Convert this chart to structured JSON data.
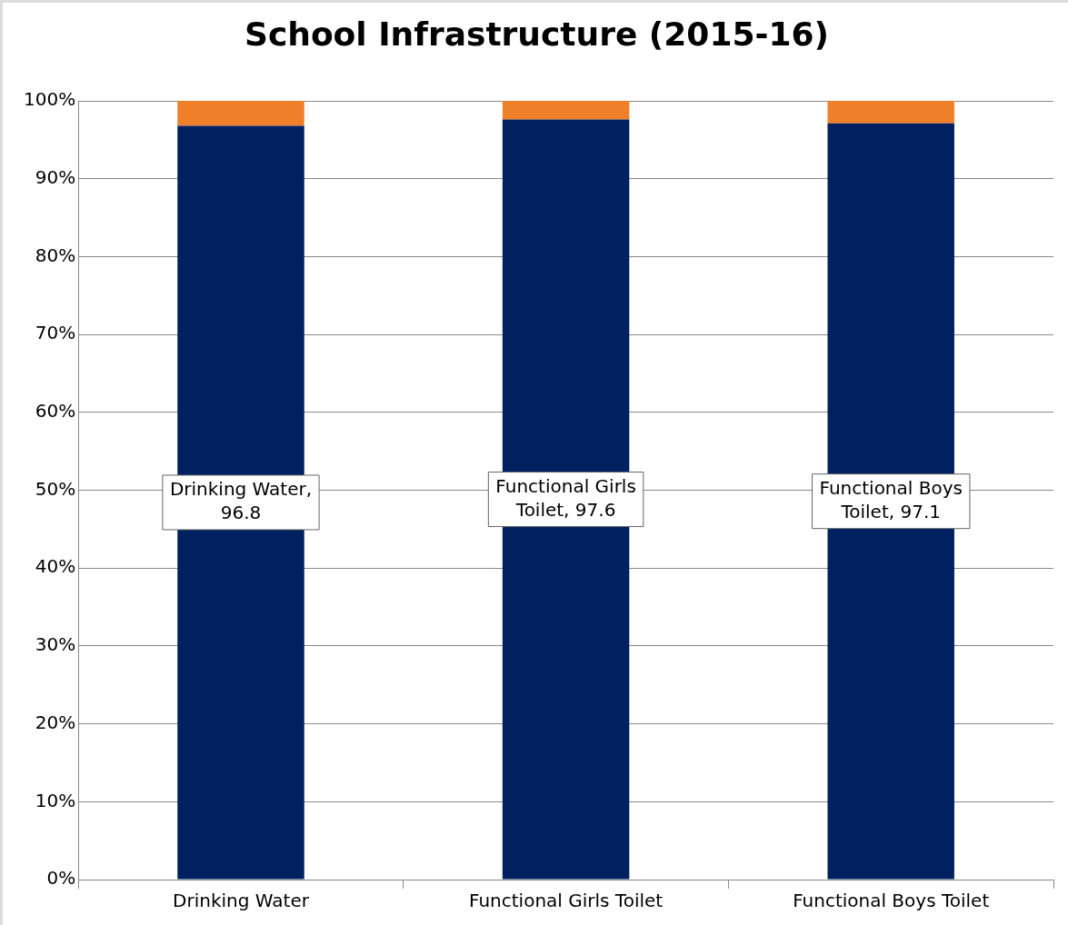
{
  "chart_data": {
    "type": "bar",
    "title": "School Infrastructure (2015-16)",
    "categories": [
      "Drinking Water",
      "Functional Girls Toilet",
      "Functional Boys Toilet"
    ],
    "stacked": true,
    "series": [
      {
        "color": "#002060",
        "values": [
          96.8,
          97.6,
          97.1
        ],
        "value_labels": [
          "Drinking Water, 96.8",
          "Functional Girls Toilet, 97.6",
          "Functional Boys Toilet, 97.1"
        ]
      },
      {
        "color": "#f07f2a",
        "values": [
          3.2,
          2.4,
          2.9
        ]
      }
    ],
    "ylim": [
      0,
      100
    ],
    "yticks": [
      {
        "value": 0,
        "label": "0%"
      },
      {
        "value": 10,
        "label": "10%"
      },
      {
        "value": 20,
        "label": "20%"
      },
      {
        "value": 30,
        "label": "30%"
      },
      {
        "value": 40,
        "label": "40%"
      },
      {
        "value": 50,
        "label": "50%"
      },
      {
        "value": 60,
        "label": "60%"
      },
      {
        "value": 70,
        "label": "70%"
      },
      {
        "value": 80,
        "label": "80%"
      },
      {
        "value": 90,
        "label": "90%"
      },
      {
        "value": 100,
        "label": "100%"
      }
    ],
    "grid": "y",
    "legend": false
  }
}
